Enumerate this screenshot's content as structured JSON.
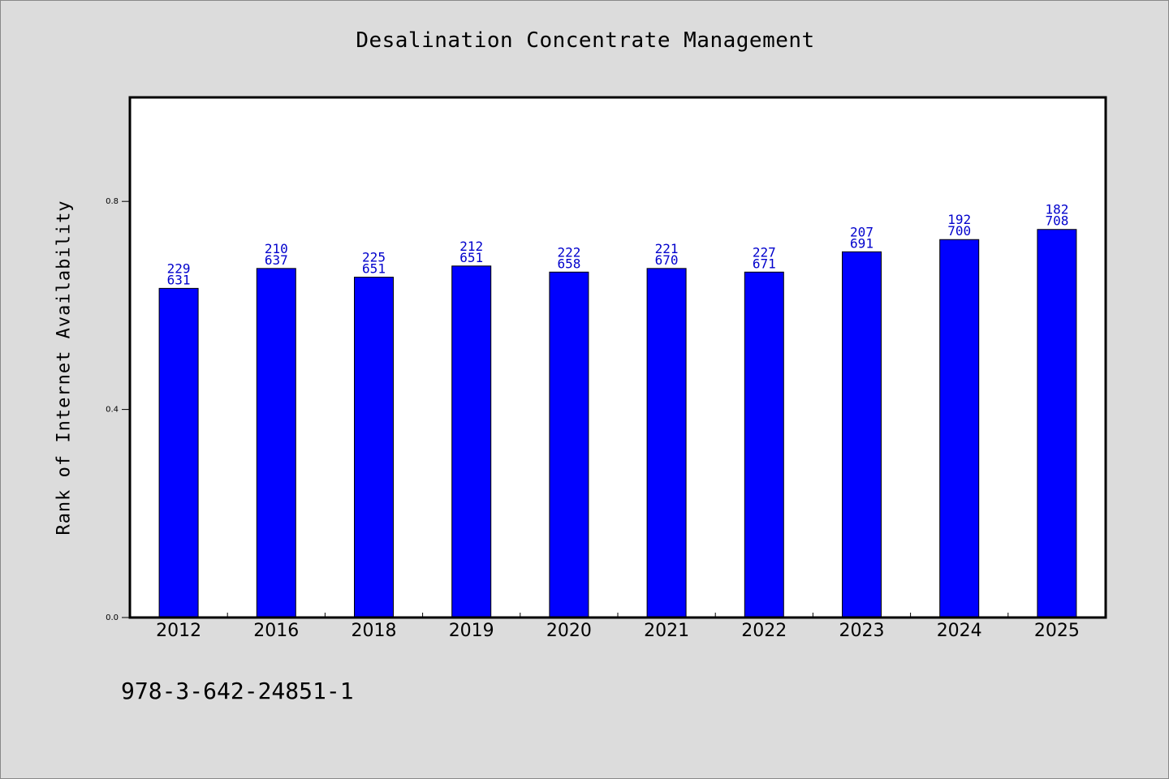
{
  "colors": {
    "background": "#dcdcdc",
    "plot_background": "#ffffff",
    "bar_fill": "#0000ff",
    "bar_label": "#0000cc",
    "axis": "#000000"
  },
  "footer_code": "978-3-642-24851-1",
  "chart_data": {
    "type": "bar",
    "title": "Desalination Concentrate Management",
    "xlabel": "",
    "ylabel": "Rank of Internet Availability",
    "categories": [
      "2012",
      "2016",
      "2018",
      "2019",
      "2020",
      "2021",
      "2022",
      "2023",
      "2024",
      "2025"
    ],
    "values": [
      0.6328,
      0.6711,
      0.6543,
      0.6758,
      0.6641,
      0.6711,
      0.6641,
      0.7031,
      0.7266,
      0.7461
    ],
    "label_top": [
      "229",
      "210",
      "225",
      "212",
      "222",
      "221",
      "227",
      "207",
      "192",
      "182"
    ],
    "label_bottom": [
      "631",
      "637",
      "651",
      "651",
      "658",
      "670",
      "671",
      "691",
      "700",
      "708"
    ],
    "ylim": [
      0,
      1.0
    ],
    "yticks": [
      0.0,
      0.4,
      0.8
    ],
    "ytick_labels": [
      "0.0",
      "0.4",
      "0.8"
    ],
    "grid": false,
    "legend": "none"
  }
}
